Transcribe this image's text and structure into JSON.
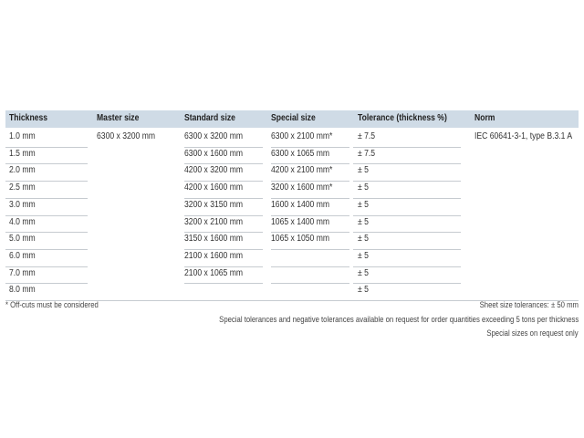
{
  "table": {
    "header": [
      "Thickness",
      "Master size",
      "Standard size",
      "Special size",
      "Tolerance (thickness %)",
      "Norm"
    ],
    "rows": [
      [
        "1.0 mm",
        "6300 x 3200 mm",
        "6300 x 3200 mm",
        "6300 x 2100 mm*",
        "± 7.5",
        "IEC 60641-3-1, type B.3.1 A"
      ],
      [
        "1.5 mm",
        null,
        "6300 x 1600 mm",
        "6300 x 1065 mm",
        "± 7.5",
        null
      ],
      [
        "2.0 mm",
        null,
        "4200 x 3200 mm",
        "4200 x 2100 mm*",
        "± 5",
        null
      ],
      [
        "2.5 mm",
        null,
        "4200 x 1600 mm",
        "3200 x 1600 mm*",
        "± 5",
        null
      ],
      [
        "3.0 mm",
        null,
        "3200 x 3150 mm",
        "1600 x 1400 mm",
        "± 5",
        null
      ],
      [
        "4.0 mm",
        null,
        "3200 x 2100 mm",
        "1065 x 1400 mm",
        "± 5",
        null
      ],
      [
        "5.0 mm",
        null,
        "3150 x 1600 mm",
        "1065 x 1050 mm",
        "± 5",
        null
      ],
      [
        "6.0 mm",
        null,
        "2100 x 1600 mm",
        null,
        "± 5",
        null
      ],
      [
        "7.0 mm",
        null,
        "2100 x 1065 mm",
        null,
        "± 5",
        null
      ],
      [
        "8.0 mm",
        null,
        null,
        null,
        "± 5",
        null
      ]
    ]
  },
  "footnotes": {
    "left": "* Off-cuts must be considered",
    "right": [
      "Sheet size tolerances: ± 50 mm",
      "Special tolerances and negative tolerances available on request for order quantities exceeding 5 tons per thickness",
      "Special sizes on request only"
    ]
  }
}
